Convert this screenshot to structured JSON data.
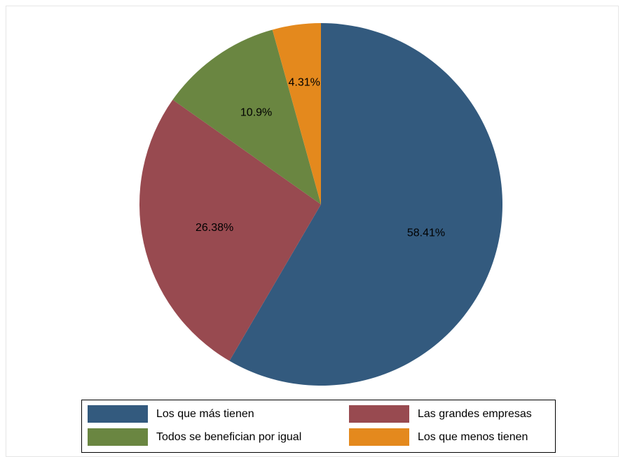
{
  "chart_data": {
    "type": "pie",
    "title": "",
    "slices": [
      {
        "label": "Los que más tienen",
        "value": 58.41,
        "display": "58.41%",
        "color": "#335a7e"
      },
      {
        "label": "Las grandes empresas",
        "value": 26.38,
        "display": "26.38%",
        "color": "#984a50"
      },
      {
        "label": "Todos se benefician por igual",
        "value": 10.9,
        "display": "10.9%",
        "color": "#6a8641"
      },
      {
        "label": "Los que menos tienen",
        "value": 4.31,
        "display": "4.31%",
        "color": "#e4891d"
      }
    ],
    "legend_position": "bottom"
  }
}
